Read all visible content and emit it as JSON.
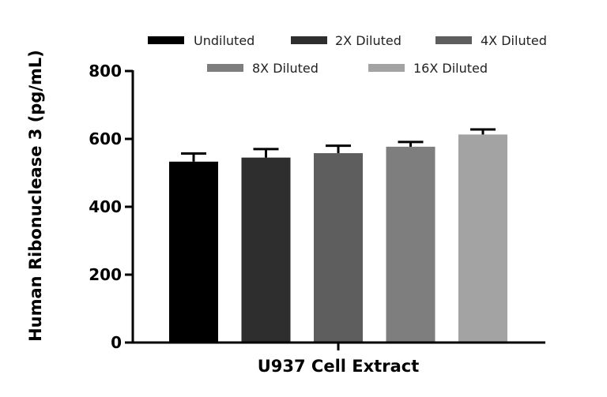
{
  "chart_data": {
    "type": "bar",
    "xlabel": "U937 Cell Extract",
    "ylabel": "Human Ribonuclease 3 (pg/mL)",
    "ylim": [
      0,
      800
    ],
    "yticks": [
      0,
      200,
      400,
      600,
      800
    ],
    "grid": false,
    "legend_position": "top",
    "series": [
      {
        "name": "Undiluted",
        "value": 533,
        "error": 24,
        "color": "#000000"
      },
      {
        "name": "2X Diluted",
        "value": 545,
        "error": 25,
        "color": "#2e2e2e"
      },
      {
        "name": "4X Diluted",
        "value": 558,
        "error": 22,
        "color": "#5e5e5e"
      },
      {
        "name": "8X Diluted",
        "value": 577,
        "error": 14,
        "color": "#7e7e7e"
      },
      {
        "name": "16X Diluted",
        "value": 613,
        "error": 15,
        "color": "#a3a3a3"
      }
    ]
  }
}
